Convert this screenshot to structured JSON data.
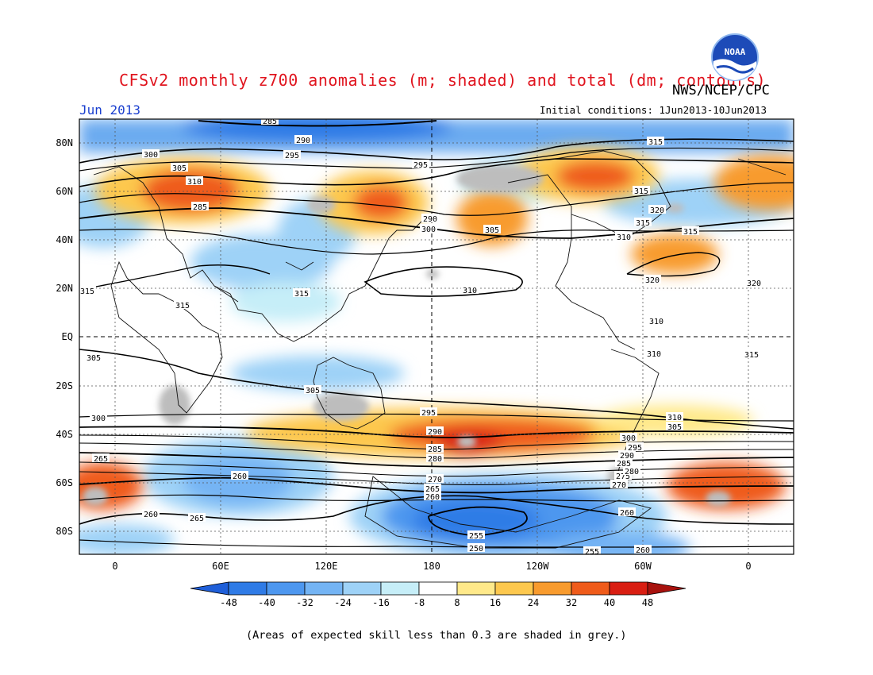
{
  "header": {
    "title": "CFSv2 monthly z700 anomalies (m; shaded) and total (dm; contours)",
    "agency": "NWS/NCEP/CPC",
    "logo_text": "NOAA",
    "month": "Jun 2013",
    "initial_conditions": "Initial conditions: 1Jun2013-10Jun2013"
  },
  "axes": {
    "lat_labels": [
      "80N",
      "60N",
      "40N",
      "20N",
      "EQ",
      "20S",
      "40S",
      "60S",
      "80S"
    ],
    "lon_labels": [
      "0",
      "60E",
      "120E",
      "180",
      "120W",
      "60W",
      "0"
    ]
  },
  "colorbar": {
    "ticks": [
      "-48",
      "-40",
      "-32",
      "-24",
      "-16",
      "-8",
      "8",
      "16",
      "24",
      "32",
      "40",
      "48"
    ],
    "colors": [
      "#1f5fd9",
      "#2f7be6",
      "#4d97ef",
      "#74b4f4",
      "#9ed2f7",
      "#c6eef8",
      "#ffffff",
      "#ffe98a",
      "#fdc84e",
      "#f89b2e",
      "#ef5b1a",
      "#d91e12",
      "#a8120e"
    ]
  },
  "contour_labels": {
    "north": [
      "285",
      "290",
      "295",
      "300",
      "305",
      "310",
      "315",
      "320"
    ],
    "south": [
      "310",
      "305",
      "300",
      "295",
      "290",
      "285",
      "280",
      "275",
      "270",
      "265",
      "260",
      "255",
      "250"
    ],
    "map_labels": [
      "285",
      "290",
      "295",
      "300",
      "305",
      "310",
      "285",
      "295",
      "290",
      "300",
      "305",
      "310",
      "315",
      "315",
      "320",
      "315",
      "310",
      "315",
      "320",
      "320",
      "315",
      "315",
      "315",
      "310",
      "310",
      "305",
      "305",
      "300",
      "295",
      "290",
      "285",
      "280",
      "265",
      "260",
      "260",
      "265",
      "270",
      "265",
      "260",
      "255",
      "250",
      "255",
      "260",
      "275",
      "270",
      "285",
      "280",
      "290",
      "295",
      "300",
      "305",
      "310",
      "315",
      "260"
    ]
  },
  "legend_colors": {
    "title": "#e0141e",
    "month": "#1a3fcf",
    "skill_mask": "#bdbdbd"
  },
  "footnote": "(Areas of expected skill less than 0.3 are shaded in grey.)"
}
